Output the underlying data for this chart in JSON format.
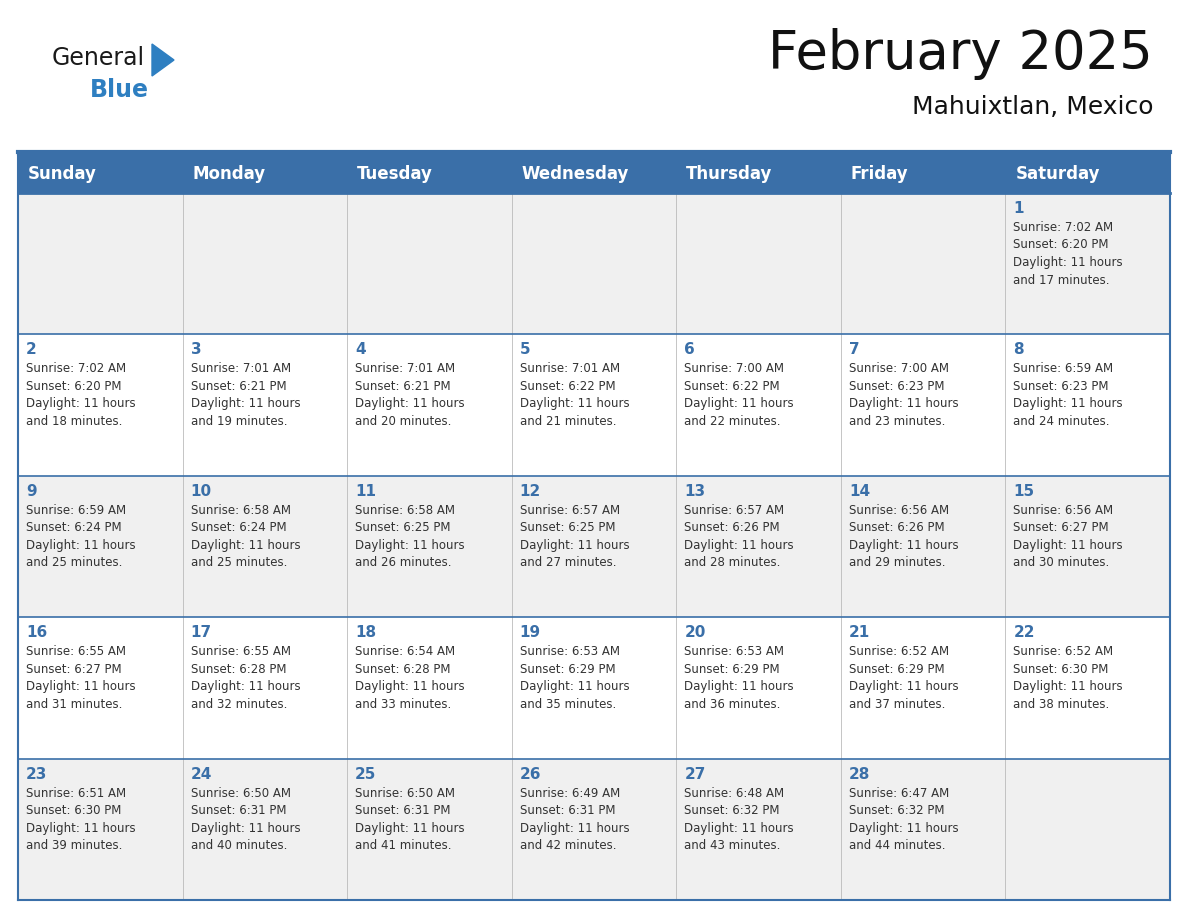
{
  "title": "February 2025",
  "subtitle": "Mahuixtlan, Mexico",
  "header_bg_color": "#3a6fa8",
  "header_text_color": "#ffffff",
  "cell_bg_color_odd": "#f0f0f0",
  "cell_bg_color_even": "#ffffff",
  "border_color": "#3a6fa8",
  "day_headers": [
    "Sunday",
    "Monday",
    "Tuesday",
    "Wednesday",
    "Thursday",
    "Friday",
    "Saturday"
  ],
  "calendar_data": [
    [
      {
        "day": "",
        "info": ""
      },
      {
        "day": "",
        "info": ""
      },
      {
        "day": "",
        "info": ""
      },
      {
        "day": "",
        "info": ""
      },
      {
        "day": "",
        "info": ""
      },
      {
        "day": "",
        "info": ""
      },
      {
        "day": "1",
        "info": "Sunrise: 7:02 AM\nSunset: 6:20 PM\nDaylight: 11 hours\nand 17 minutes."
      }
    ],
    [
      {
        "day": "2",
        "info": "Sunrise: 7:02 AM\nSunset: 6:20 PM\nDaylight: 11 hours\nand 18 minutes."
      },
      {
        "day": "3",
        "info": "Sunrise: 7:01 AM\nSunset: 6:21 PM\nDaylight: 11 hours\nand 19 minutes."
      },
      {
        "day": "4",
        "info": "Sunrise: 7:01 AM\nSunset: 6:21 PM\nDaylight: 11 hours\nand 20 minutes."
      },
      {
        "day": "5",
        "info": "Sunrise: 7:01 AM\nSunset: 6:22 PM\nDaylight: 11 hours\nand 21 minutes."
      },
      {
        "day": "6",
        "info": "Sunrise: 7:00 AM\nSunset: 6:22 PM\nDaylight: 11 hours\nand 22 minutes."
      },
      {
        "day": "7",
        "info": "Sunrise: 7:00 AM\nSunset: 6:23 PM\nDaylight: 11 hours\nand 23 minutes."
      },
      {
        "day": "8",
        "info": "Sunrise: 6:59 AM\nSunset: 6:23 PM\nDaylight: 11 hours\nand 24 minutes."
      }
    ],
    [
      {
        "day": "9",
        "info": "Sunrise: 6:59 AM\nSunset: 6:24 PM\nDaylight: 11 hours\nand 25 minutes."
      },
      {
        "day": "10",
        "info": "Sunrise: 6:58 AM\nSunset: 6:24 PM\nDaylight: 11 hours\nand 25 minutes."
      },
      {
        "day": "11",
        "info": "Sunrise: 6:58 AM\nSunset: 6:25 PM\nDaylight: 11 hours\nand 26 minutes."
      },
      {
        "day": "12",
        "info": "Sunrise: 6:57 AM\nSunset: 6:25 PM\nDaylight: 11 hours\nand 27 minutes."
      },
      {
        "day": "13",
        "info": "Sunrise: 6:57 AM\nSunset: 6:26 PM\nDaylight: 11 hours\nand 28 minutes."
      },
      {
        "day": "14",
        "info": "Sunrise: 6:56 AM\nSunset: 6:26 PM\nDaylight: 11 hours\nand 29 minutes."
      },
      {
        "day": "15",
        "info": "Sunrise: 6:56 AM\nSunset: 6:27 PM\nDaylight: 11 hours\nand 30 minutes."
      }
    ],
    [
      {
        "day": "16",
        "info": "Sunrise: 6:55 AM\nSunset: 6:27 PM\nDaylight: 11 hours\nand 31 minutes."
      },
      {
        "day": "17",
        "info": "Sunrise: 6:55 AM\nSunset: 6:28 PM\nDaylight: 11 hours\nand 32 minutes."
      },
      {
        "day": "18",
        "info": "Sunrise: 6:54 AM\nSunset: 6:28 PM\nDaylight: 11 hours\nand 33 minutes."
      },
      {
        "day": "19",
        "info": "Sunrise: 6:53 AM\nSunset: 6:29 PM\nDaylight: 11 hours\nand 35 minutes."
      },
      {
        "day": "20",
        "info": "Sunrise: 6:53 AM\nSunset: 6:29 PM\nDaylight: 11 hours\nand 36 minutes."
      },
      {
        "day": "21",
        "info": "Sunrise: 6:52 AM\nSunset: 6:29 PM\nDaylight: 11 hours\nand 37 minutes."
      },
      {
        "day": "22",
        "info": "Sunrise: 6:52 AM\nSunset: 6:30 PM\nDaylight: 11 hours\nand 38 minutes."
      }
    ],
    [
      {
        "day": "23",
        "info": "Sunrise: 6:51 AM\nSunset: 6:30 PM\nDaylight: 11 hours\nand 39 minutes."
      },
      {
        "day": "24",
        "info": "Sunrise: 6:50 AM\nSunset: 6:31 PM\nDaylight: 11 hours\nand 40 minutes."
      },
      {
        "day": "25",
        "info": "Sunrise: 6:50 AM\nSunset: 6:31 PM\nDaylight: 11 hours\nand 41 minutes."
      },
      {
        "day": "26",
        "info": "Sunrise: 6:49 AM\nSunset: 6:31 PM\nDaylight: 11 hours\nand 42 minutes."
      },
      {
        "day": "27",
        "info": "Sunrise: 6:48 AM\nSunset: 6:32 PM\nDaylight: 11 hours\nand 43 minutes."
      },
      {
        "day": "28",
        "info": "Sunrise: 6:47 AM\nSunset: 6:32 PM\nDaylight: 11 hours\nand 44 minutes."
      },
      {
        "day": "",
        "info": ""
      }
    ]
  ],
  "logo_color_general": "#1a1a1a",
  "logo_color_blue": "#2e7fc1",
  "logo_triangle_color": "#2e7fc1",
  "title_fontsize": 38,
  "subtitle_fontsize": 18,
  "header_fontsize": 12,
  "day_num_fontsize": 11,
  "info_fontsize": 8.5
}
